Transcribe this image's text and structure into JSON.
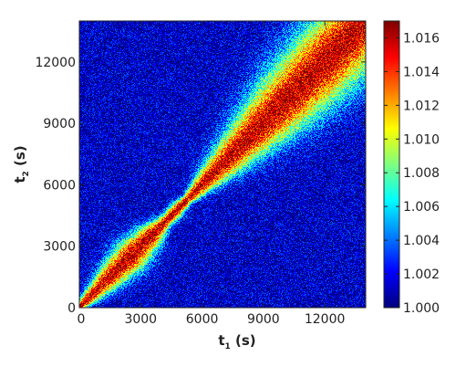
{
  "chart_data": {
    "type": "heatmap",
    "title": "",
    "xlabel": {
      "main": "t",
      "sub": "1",
      "unit": "(s)"
    },
    "ylabel": {
      "main": "t",
      "sub": "2",
      "unit": "(s)"
    },
    "xlim": [
      0,
      14000
    ],
    "ylim": [
      0,
      14000
    ],
    "x_ticks": [
      0,
      3000,
      6000,
      9000,
      12000
    ],
    "y_ticks": [
      0,
      3000,
      6000,
      9000,
      12000
    ],
    "x_tick_labels": [
      "0",
      "3000",
      "6000",
      "9000",
      "12000"
    ],
    "y_tick_labels": [
      "0",
      "3000",
      "6000",
      "9000",
      "12000"
    ],
    "colorbar": {
      "min": 1.0,
      "max": 1.017,
      "ticks": [
        1.0,
        1.002,
        1.004,
        1.006,
        1.008,
        1.01,
        1.012,
        1.014,
        1.016
      ],
      "tick_labels": [
        "1.000",
        "1.002",
        "1.004",
        "1.006",
        "1.008",
        "1.010",
        "1.012",
        "1.014",
        "1.016"
      ],
      "colormap": "jet"
    },
    "description_values": {
      "background": 1.001,
      "diagonal_peak": 1.016,
      "diagonal_band_width_s": [
        {
          "t": 0,
          "width": 300
        },
        {
          "t": 1500,
          "width": 900
        },
        {
          "t": 2500,
          "width": 1200
        },
        {
          "t": 3500,
          "width": 900
        },
        {
          "t": 4200,
          "width": 450
        },
        {
          "t": 4800,
          "width": 500
        },
        {
          "t": 5300,
          "width": 350
        },
        {
          "t": 6000,
          "width": 700
        },
        {
          "t": 8000,
          "width": 1500
        },
        {
          "t": 10000,
          "width": 2200
        },
        {
          "t": 12000,
          "width": 2600
        },
        {
          "t": 14000,
          "width": 2600
        }
      ]
    }
  }
}
